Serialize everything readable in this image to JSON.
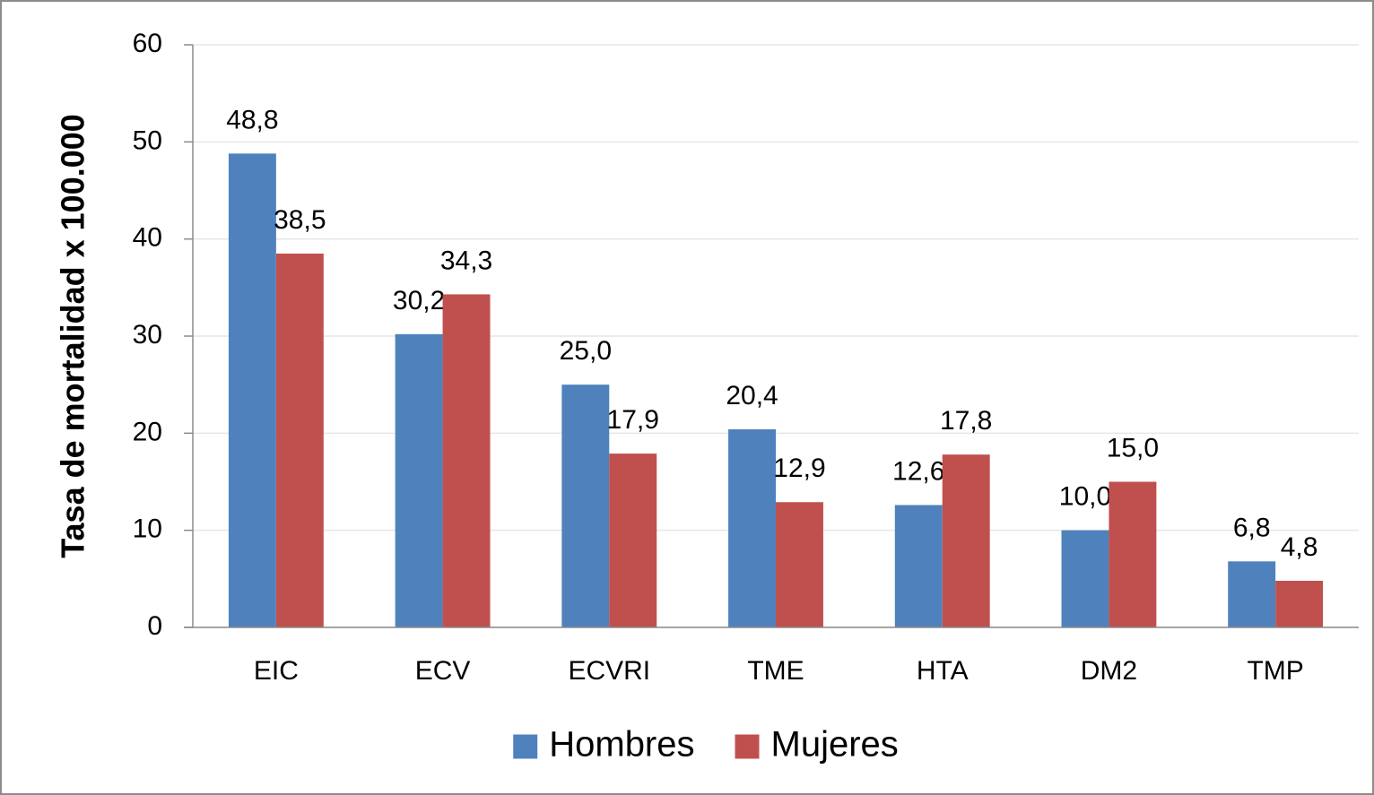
{
  "chart_data": {
    "type": "bar",
    "y_label": "Tasa de mortalidad x 100.000",
    "categories": [
      "EIC",
      "ECV",
      "ECVRI",
      "TME",
      "HTA",
      "DM2",
      "TMP"
    ],
    "series": [
      {
        "name": "Hombres",
        "color": "#4f81bd",
        "values": [
          48.8,
          30.2,
          25.0,
          20.4,
          12.6,
          10.0,
          6.8
        ],
        "value_labels": [
          "48,8",
          "30,2",
          "25,0",
          "20,4",
          "12,6",
          "10,0",
          "6,8"
        ]
      },
      {
        "name": "Mujeres",
        "color": "#c0504d",
        "values": [
          38.5,
          34.3,
          17.9,
          12.9,
          17.8,
          15.0,
          4.8
        ],
        "value_labels": [
          "38,5",
          "34,3",
          "17,9",
          "12,9",
          "17,8",
          "15,0",
          "4,8"
        ]
      }
    ],
    "ylim": [
      0,
      60
    ],
    "yticks": [
      0,
      10,
      20,
      30,
      40,
      50,
      60
    ],
    "grid": true,
    "legend": "bottom"
  }
}
